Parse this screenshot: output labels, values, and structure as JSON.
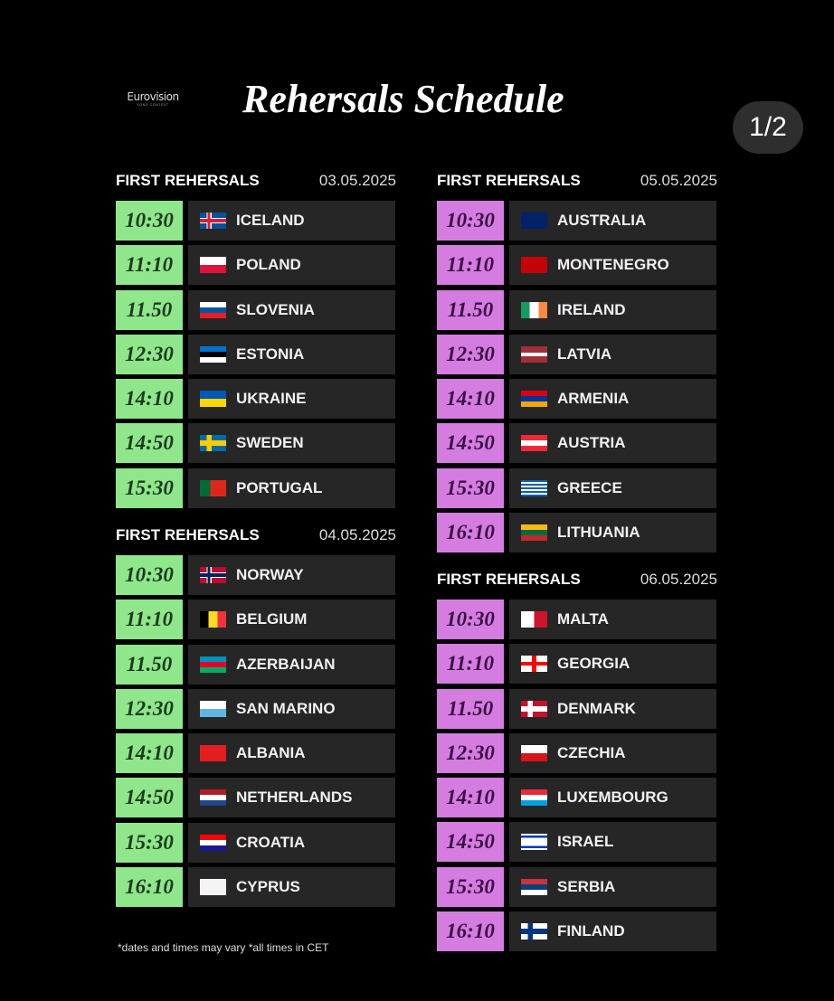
{
  "logo": {
    "text": "Eurovision",
    "sub": "SONG CONTEST"
  },
  "title": "Rehersals Schedule",
  "page_indicator": "1/2",
  "colors": {
    "green": "#8fe68b",
    "pink": "#d57ce0",
    "row_bg": "#262626"
  },
  "sections": [
    {
      "heading": "FIRST REHERSALS",
      "date": "03.05.2025",
      "theme": "green",
      "rows": [
        {
          "time": "10:30",
          "country": "ICELAND"
        },
        {
          "time": "11:10",
          "country": "POLAND"
        },
        {
          "time": "11.50",
          "country": "SLOVENIA"
        },
        {
          "time": "12:30",
          "country": "ESTONIA"
        },
        {
          "time": "14:10",
          "country": "UKRAINE"
        },
        {
          "time": "14:50",
          "country": "SWEDEN"
        },
        {
          "time": "15:30",
          "country": "PORTUGAL"
        }
      ]
    },
    {
      "heading": "FIRST REHERSALS",
      "date": "04.05.2025",
      "theme": "green",
      "rows": [
        {
          "time": "10:30",
          "country": "NORWAY"
        },
        {
          "time": "11:10",
          "country": "BELGIUM"
        },
        {
          "time": "11.50",
          "country": "AZERBAIJAN"
        },
        {
          "time": "12:30",
          "country": "SAN MARINO"
        },
        {
          "time": "14:10",
          "country": "ALBANIA"
        },
        {
          "time": "14:50",
          "country": "NETHERLANDS"
        },
        {
          "time": "15:30",
          "country": "CROATIA"
        },
        {
          "time": "16:10",
          "country": "CYPRUS"
        }
      ]
    },
    {
      "heading": "FIRST REHERSALS",
      "date": "05.05.2025",
      "theme": "pink",
      "rows": [
        {
          "time": "10:30",
          "country": "AUSTRALIA"
        },
        {
          "time": "11:10",
          "country": "MONTENEGRO"
        },
        {
          "time": "11.50",
          "country": "IRELAND"
        },
        {
          "time": "12:30",
          "country": "LATVIA"
        },
        {
          "time": "14:10",
          "country": "ARMENIA"
        },
        {
          "time": "14:50",
          "country": "AUSTRIA"
        },
        {
          "time": "15:30",
          "country": "GREECE"
        },
        {
          "time": "16:10",
          "country": "LITHUANIA"
        }
      ]
    },
    {
      "heading": "FIRST REHERSALS",
      "date": "06.05.2025",
      "theme": "pink",
      "rows": [
        {
          "time": "10:30",
          "country": "MALTA"
        },
        {
          "time": "11:10",
          "country": "GEORGIA"
        },
        {
          "time": "11.50",
          "country": "DENMARK"
        },
        {
          "time": "12:30",
          "country": "CZECHIA"
        },
        {
          "time": "14:10",
          "country": "LUXEMBOURG"
        },
        {
          "time": "14:50",
          "country": "ISRAEL"
        },
        {
          "time": "15:30",
          "country": "SERBIA"
        },
        {
          "time": "16:10",
          "country": "FINLAND"
        }
      ]
    }
  ],
  "footnote": "*dates and times may vary  *all times in CET"
}
